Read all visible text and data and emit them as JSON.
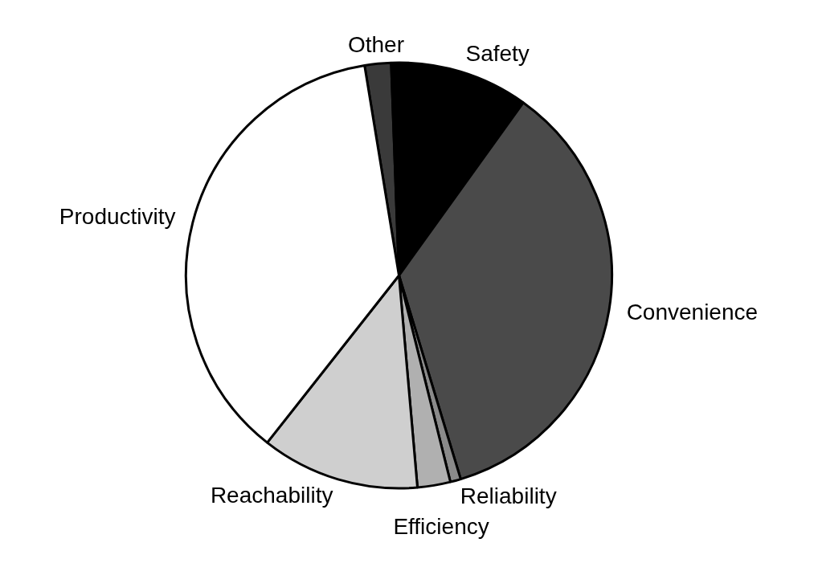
{
  "chart_data": {
    "type": "pie",
    "categories": [
      "Other",
      "Safety",
      "Convenience",
      "Reliability",
      "Efficiency",
      "Reachability",
      "Productivity"
    ],
    "values": [
      2,
      10.5,
      35.4,
      0.8,
      2.5,
      12,
      36.8
    ],
    "colors": [
      "#3a3a3a",
      "#000000",
      "#4a4a4a",
      "#8a8a8a",
      "#b0b0b0",
      "#cfcfcf",
      "#ffffff"
    ],
    "legend": false
  }
}
